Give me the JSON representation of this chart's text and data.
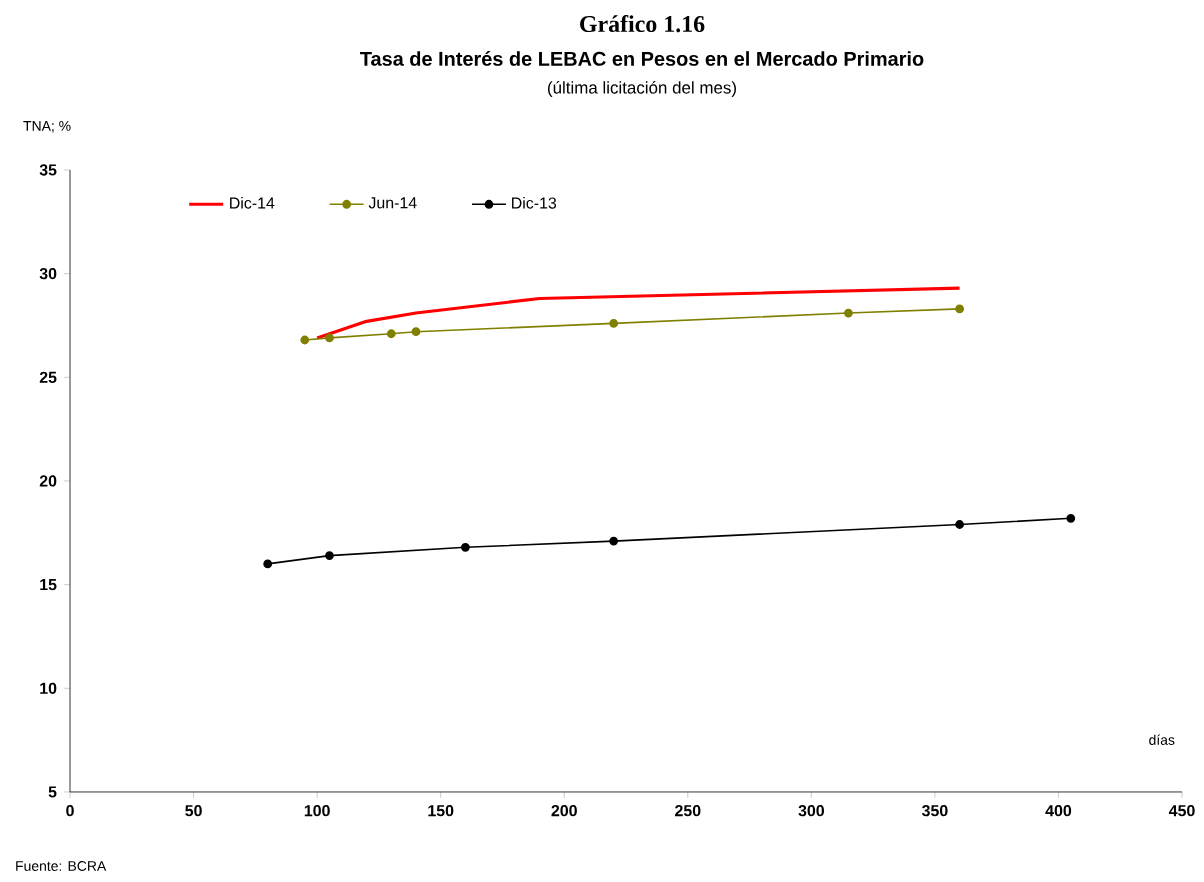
{
  "chart_data": {
    "type": "line",
    "title": "Gráfico 1.16",
    "subtitle": "Tasa de Interés de LEBAC en Pesos en el Mercado Primario",
    "xlabel": "días",
    "ylabel": "TNA; %",
    "annotations": [
      "(última licitación del mes)",
      "Fuente: BCRA"
    ],
    "xlim": [
      0,
      450
    ],
    "xticks": [
      0,
      50,
      100,
      150,
      200,
      250,
      300,
      350,
      400,
      450
    ],
    "ylim": [
      5,
      35
    ],
    "yticks": [
      5,
      10,
      15,
      20,
      25,
      30,
      35
    ],
    "grid": false,
    "legend": "top left",
    "series": [
      {
        "name": "Dic-14",
        "color": "#ff0000",
        "marker": "none",
        "x": [
          100,
          120,
          140,
          190,
          360
        ],
        "values": [
          26.9,
          27.7,
          28.1,
          28.8,
          29.3
        ]
      },
      {
        "name": "Jun-14",
        "color": "#808000",
        "marker": "circle",
        "x": [
          95,
          105,
          130,
          140,
          220,
          315,
          360
        ],
        "values": [
          26.8,
          26.9,
          27.1,
          27.2,
          27.6,
          28.1,
          28.3
        ]
      },
      {
        "name": "Dic-13",
        "color": "#000000",
        "marker": "circle",
        "x": [
          80,
          105,
          160,
          220,
          360,
          405
        ],
        "values": [
          16.0,
          16.4,
          16.8,
          17.1,
          17.9,
          18.2
        ]
      }
    ]
  }
}
